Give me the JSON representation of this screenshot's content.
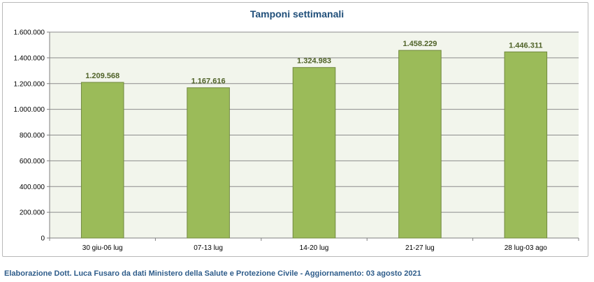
{
  "chart_data": {
    "type": "bar",
    "title": "Tamponi settimanali",
    "categories": [
      "30 giu-06 lug",
      "07-13 lug",
      "14-20 lug",
      "21-27 lug",
      "28 lug-03 ago"
    ],
    "values": [
      1209568,
      1167616,
      1324983,
      1458229,
      1446311
    ],
    "value_labels": [
      "1.209.568",
      "1.167.616",
      "1.324.983",
      "1.458.229",
      "1.446.311"
    ],
    "y_ticks": [
      0,
      200000,
      400000,
      600000,
      800000,
      1000000,
      1200000,
      1400000,
      1600000
    ],
    "y_tick_labels": [
      "0",
      "200.000",
      "400.000",
      "600.000",
      "800.000",
      "1.000.000",
      "1.200.000",
      "1.400.000",
      "1.600.000"
    ],
    "ylim": [
      0,
      1600000
    ],
    "xlabel": "",
    "ylabel": "",
    "grid": true,
    "legend": "none",
    "colors": {
      "bar_fill": "#9bbb59",
      "bar_stroke": "#71893f",
      "plot_background": "#f2f5ec",
      "gridline": "#8c8c8c",
      "data_label": "#4f6228",
      "title": "#1f4e79"
    }
  },
  "footer": {
    "credit": "Elaborazione Dott. Luca Fusaro da dati Ministero della Salute e Protezione Civile - Aggiornamento: 03 agosto 2021"
  }
}
